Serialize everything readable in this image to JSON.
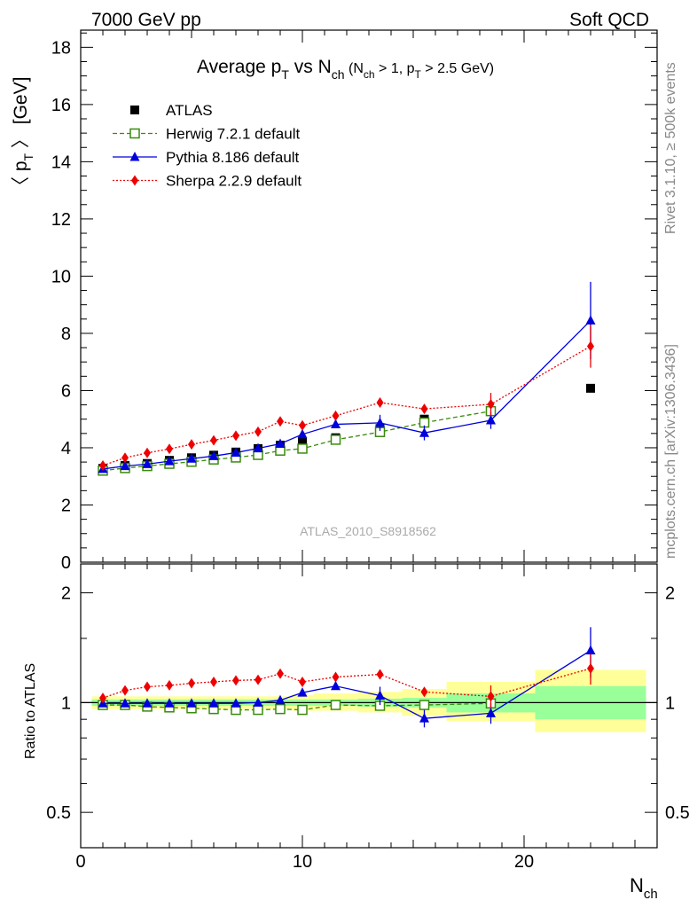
{
  "header": {
    "left": "7000 GeV pp",
    "right": "Soft QCD"
  },
  "side_labels": {
    "rivet": "Rivet 3.1.10, ≥ 500k events",
    "mcplots": "mcplots.cern.ch [arXiv:1306.3436]"
  },
  "watermark": "ATLAS_2010_S8918562",
  "chart_data": [
    {
      "type": "scatter",
      "title": {
        "main": "Average p",
        "main_sub": "T",
        "vs": " vs N",
        "vs_sub": "ch",
        "cut1": " (N",
        "cut1_sub": "ch",
        "cut2": " > 1, p",
        "cut2_sub": "T",
        "cut3": " > 2.5 GeV)"
      },
      "ylabel": {
        "open": "〈 p",
        "sub": "T",
        "close": " 〉  [GeV]"
      },
      "xlabel": {
        "main": "N",
        "sub": "ch"
      },
      "xlim": [
        0,
        26
      ],
      "ylim": [
        0,
        18.6
      ],
      "yticks": [
        "0",
        "2",
        "4",
        "6",
        "8",
        "10",
        "12",
        "14",
        "16",
        "18"
      ],
      "xticks": [
        "0",
        "10",
        "20"
      ],
      "legend_position": "top-left",
      "series": [
        {
          "name": "ATLAS",
          "color": "#000000",
          "marker": "square-filled",
          "x": [
            1,
            2,
            3,
            4,
            5,
            6,
            7,
            8,
            9,
            10,
            11.5,
            13.5,
            15.5,
            18.5,
            23
          ],
          "y": [
            3.28,
            3.38,
            3.45,
            3.56,
            3.65,
            3.74,
            3.85,
            3.97,
            4.09,
            4.2,
            4.35,
            4.67,
            5.0,
            5.3,
            6.08
          ]
        },
        {
          "name": "Herwig 7.2.1 default",
          "color": "#3a8a0e",
          "marker": "square-open",
          "line": "dashed",
          "x": [
            1,
            2,
            3,
            4,
            5,
            6,
            7,
            8,
            9,
            10,
            11.5,
            13.5,
            15.5,
            18.5
          ],
          "y": [
            3.2,
            3.29,
            3.36,
            3.44,
            3.51,
            3.59,
            3.66,
            3.75,
            3.9,
            3.97,
            4.28,
            4.55,
            4.88,
            5.28
          ]
        },
        {
          "name": "Pythia 8.186 default",
          "color": "#0000dd",
          "marker": "triangle-filled",
          "line": "solid",
          "x": [
            1,
            2,
            3,
            4,
            5,
            6,
            7,
            8,
            9,
            10,
            11.5,
            13.5,
            15.5,
            18.5,
            23
          ],
          "y": [
            3.26,
            3.36,
            3.43,
            3.53,
            3.62,
            3.71,
            3.83,
            3.98,
            4.14,
            4.47,
            4.82,
            4.87,
            4.52,
            4.96,
            8.45
          ],
          "yerr": [
            0.04,
            0.04,
            0.04,
            0.04,
            0.04,
            0.05,
            0.05,
            0.05,
            0.07,
            0.1,
            0.12,
            0.28,
            0.26,
            0.3,
            1.35
          ]
        },
        {
          "name": "Sherpa 2.2.9 default",
          "color": "#ee0000",
          "marker": "diamond-filled",
          "line": "dotted",
          "x": [
            1,
            2,
            3,
            4,
            5,
            6,
            7,
            8,
            9,
            10,
            11.5,
            13.5,
            15.5,
            18.5,
            23
          ],
          "y": [
            3.38,
            3.65,
            3.82,
            3.96,
            4.12,
            4.26,
            4.42,
            4.56,
            4.92,
            4.78,
            5.12,
            5.58,
            5.36,
            5.52,
            7.55
          ],
          "yerr": [
            0.04,
            0.04,
            0.05,
            0.05,
            0.05,
            0.05,
            0.06,
            0.06,
            0.08,
            0.08,
            0.1,
            0.15,
            0.15,
            0.4,
            0.75
          ]
        }
      ]
    },
    {
      "type": "scatter",
      "ylabel": "Ratio to ATLAS",
      "xlim": [
        0,
        26
      ],
      "ylim": [
        0.4,
        2.4
      ],
      "log_scale_y": true,
      "yticks": [
        "0.5",
        "1",
        "2"
      ],
      "xticks": [
        "0",
        "10",
        "20"
      ],
      "uncertainty_bands": {
        "x_edges": [
          0.5,
          1.5,
          2.5,
          3.5,
          4.5,
          5.5,
          6.5,
          7.5,
          8.5,
          9.5,
          10.5,
          12.5,
          14.5,
          16.5,
          20.5,
          25.5
        ],
        "stat_band": [
          [
            0.98,
            1.02
          ],
          [
            0.98,
            1.02
          ],
          [
            0.98,
            1.02
          ],
          [
            0.98,
            1.02
          ],
          [
            0.98,
            1.02
          ],
          [
            0.98,
            1.02
          ],
          [
            0.98,
            1.02
          ],
          [
            0.98,
            1.02
          ],
          [
            0.98,
            1.02
          ],
          [
            0.98,
            1.02
          ],
          [
            0.98,
            1.02
          ],
          [
            0.975,
            1.025
          ],
          [
            0.97,
            1.03
          ],
          [
            0.94,
            1.06
          ],
          [
            0.9,
            1.11
          ]
        ],
        "total_band": [
          [
            0.96,
            1.04
          ],
          [
            0.96,
            1.04
          ],
          [
            0.96,
            1.04
          ],
          [
            0.96,
            1.04
          ],
          [
            0.96,
            1.04
          ],
          [
            0.96,
            1.04
          ],
          [
            0.96,
            1.04
          ],
          [
            0.96,
            1.04
          ],
          [
            0.96,
            1.04
          ],
          [
            0.95,
            1.05
          ],
          [
            0.95,
            1.06
          ],
          [
            0.94,
            1.07
          ],
          [
            0.92,
            1.09
          ],
          [
            0.89,
            1.14
          ],
          [
            0.83,
            1.23
          ]
        ],
        "stat_color": "#99ff99",
        "total_color": "#ffff99"
      },
      "series": [
        {
          "name": "Herwig 7.2.1 default",
          "color": "#3a8a0e",
          "x": [
            1,
            2,
            3,
            4,
            5,
            6,
            7,
            8,
            9,
            10,
            11.5,
            13.5,
            15.5,
            18.5
          ],
          "y": [
            0.985,
            0.985,
            0.975,
            0.97,
            0.965,
            0.96,
            0.955,
            0.955,
            0.96,
            0.955,
            0.985,
            0.98,
            0.985,
            0.995
          ]
        },
        {
          "name": "Pythia 8.186 default",
          "color": "#0000dd",
          "x": [
            1,
            2,
            3,
            4,
            5,
            6,
            7,
            8,
            9,
            10,
            11.5,
            13.5,
            15.5,
            18.5,
            23
          ],
          "y": [
            0.995,
            0.995,
            0.995,
            0.995,
            0.995,
            0.995,
            0.995,
            1.0,
            1.015,
            1.065,
            1.11,
            1.045,
            0.905,
            0.935,
            1.39
          ],
          "yerr": [
            0.01,
            0.01,
            0.01,
            0.01,
            0.01,
            0.01,
            0.01,
            0.01,
            0.015,
            0.02,
            0.025,
            0.06,
            0.05,
            0.06,
            0.22
          ]
        },
        {
          "name": "Sherpa 2.2.9 default",
          "color": "#ee0000",
          "x": [
            1,
            2,
            3,
            4,
            5,
            6,
            7,
            8,
            9,
            10,
            11.5,
            13.5,
            15.5,
            18.5,
            23
          ],
          "y": [
            1.03,
            1.08,
            1.105,
            1.115,
            1.13,
            1.14,
            1.15,
            1.155,
            1.2,
            1.14,
            1.175,
            1.195,
            1.07,
            1.04,
            1.24
          ],
          "yerr": [
            0.01,
            0.01,
            0.015,
            0.015,
            0.015,
            0.015,
            0.015,
            0.015,
            0.02,
            0.02,
            0.025,
            0.035,
            0.03,
            0.075,
            0.12
          ]
        }
      ]
    }
  ]
}
